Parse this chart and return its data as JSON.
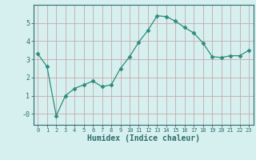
{
  "x": [
    0,
    1,
    2,
    3,
    4,
    5,
    6,
    7,
    8,
    9,
    10,
    11,
    12,
    13,
    14,
    15,
    16,
    17,
    18,
    19,
    20,
    21,
    22,
    23
  ],
  "y": [
    3.3,
    2.6,
    -0.1,
    1.0,
    1.4,
    1.6,
    1.8,
    1.5,
    1.6,
    2.5,
    3.15,
    3.95,
    4.6,
    5.4,
    5.35,
    5.1,
    4.75,
    4.45,
    3.9,
    3.15,
    3.1,
    3.2,
    3.2,
    3.5
  ],
  "line_color": "#2e8b7a",
  "marker": "D",
  "marker_size": 2.5,
  "bg_color": "#d6f0f0",
  "grid_color": "#c8a8a8",
  "xlabel": "Humidex (Indice chaleur)",
  "xlim": [
    -0.5,
    23.5
  ],
  "ylim": [
    -0.6,
    6.0
  ],
  "yticks": [
    0,
    1,
    2,
    3,
    4,
    5
  ],
  "ytick_labels": [
    "-0",
    "1",
    "2",
    "3",
    "4",
    "5"
  ],
  "xtick_labels": [
    "0",
    "1",
    "2",
    "3",
    "4",
    "5",
    "6",
    "7",
    "8",
    "9",
    "10",
    "11",
    "12",
    "13",
    "14",
    "15",
    "16",
    "17",
    "18",
    "19",
    "20",
    "21",
    "22",
    "23"
  ],
  "axis_color": "#2e6b6b",
  "tick_color": "#2e6b6b",
  "xlabel_fontsize": 7,
  "xtick_fontsize": 5,
  "ytick_fontsize": 6
}
